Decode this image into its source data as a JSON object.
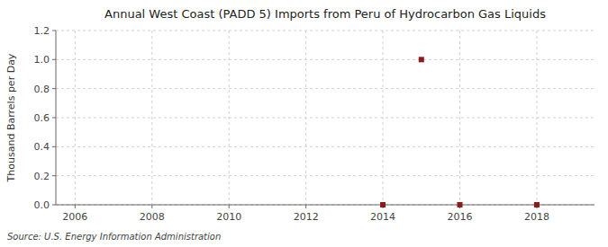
{
  "chart_data": {
    "type": "scatter",
    "title": "Annual West Coast (PADD 5) Imports from Peru of Hydrocarbon Gas Liquids",
    "ylabel": "Thousand Barrels per Day",
    "annotation": "Source: U.S. Energy Information Administration",
    "x": [
      2014,
      2015,
      2016,
      2018
    ],
    "values": [
      0.0,
      1.0,
      0.0,
      0.0
    ],
    "color": "#8b1a1a",
    "marker": "square",
    "xlim": [
      2005.5,
      2019.5
    ],
    "ylim": [
      0.0,
      1.2
    ],
    "xticks": [
      2006,
      2008,
      2010,
      2012,
      2014,
      2016,
      2018
    ],
    "yticks": [
      {
        "value": 0.0,
        "label": "0.0"
      },
      0.2,
      0.4,
      0.6,
      0.8,
      {
        "value": 1.0,
        "label": "1.0"
      },
      1.2
    ],
    "grid": true
  }
}
